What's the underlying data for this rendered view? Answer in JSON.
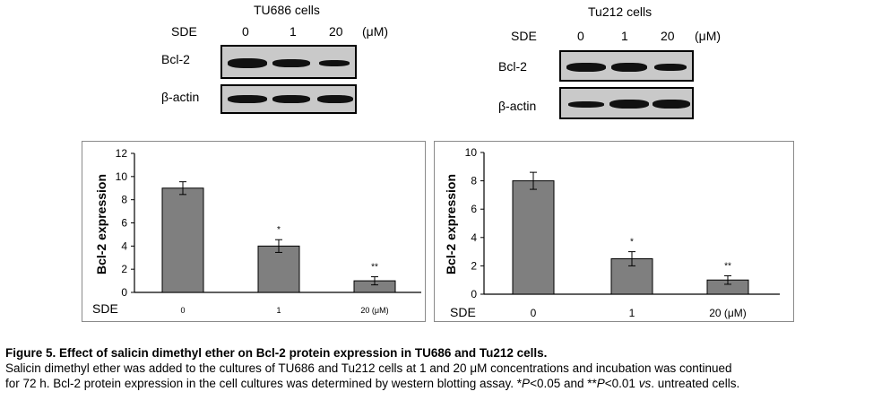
{
  "blots": [
    {
      "title": "TU686 cells",
      "sde_label": "SDE",
      "doses": [
        "0",
        "1",
        "20"
      ],
      "unit": "(μM)",
      "rows": [
        "Bcl-2",
        "β-actin"
      ]
    },
    {
      "title": "Tu212 cells",
      "sde_label": "SDE",
      "doses": [
        "0",
        "1",
        "20"
      ],
      "unit": "(μM)",
      "rows": [
        "Bcl-2",
        "β-actin"
      ]
    }
  ],
  "chart_data": [
    {
      "type": "bar",
      "categories": [
        "0",
        "1",
        "20 (μM)"
      ],
      "values": [
        9.0,
        4.0,
        1.0
      ],
      "errors": [
        0.55,
        0.55,
        0.35
      ],
      "annotations": [
        "",
        "*",
        "**"
      ],
      "ylabel": "Bcl-2 expression",
      "xlabel": "SDE",
      "ylim": [
        0,
        12
      ],
      "yticks": [
        "0",
        "2",
        "4",
        "6",
        "8",
        "10",
        "12"
      ],
      "bar_color": "#7f7f7f"
    },
    {
      "type": "bar",
      "categories": [
        "0",
        "1",
        "20 (μM)"
      ],
      "values": [
        8.0,
        2.5,
        1.0
      ],
      "errors": [
        0.6,
        0.5,
        0.3
      ],
      "annotations": [
        "",
        "*",
        "**"
      ],
      "ylabel": "Bcl-2 expression",
      "xlabel": "SDE",
      "ylim": [
        0,
        10
      ],
      "yticks": [
        "0",
        "2",
        "4",
        "6",
        "8",
        "10"
      ],
      "bar_color": "#7f7f7f"
    }
  ],
  "caption": {
    "title": "Figure 5. Effect of salicin dimethyl ether on Bcl-2 protein expression in TU686 and Tu212 cells.",
    "line1": "Salicin dimethyl ether was added to the cultures of TU686 and Tu212 cells at 1 and 20 μM concentrations and incubation was continued",
    "line2a": "for 72 h. Bcl-2 protein expression in the cell cultures was determined by western blotting assay. *",
    "p1": "P",
    "line2b": "<0.05 and **",
    "p2": "P",
    "line2c": "<0.01 ",
    "vs": "vs",
    "line2d": ". untreated cells."
  }
}
